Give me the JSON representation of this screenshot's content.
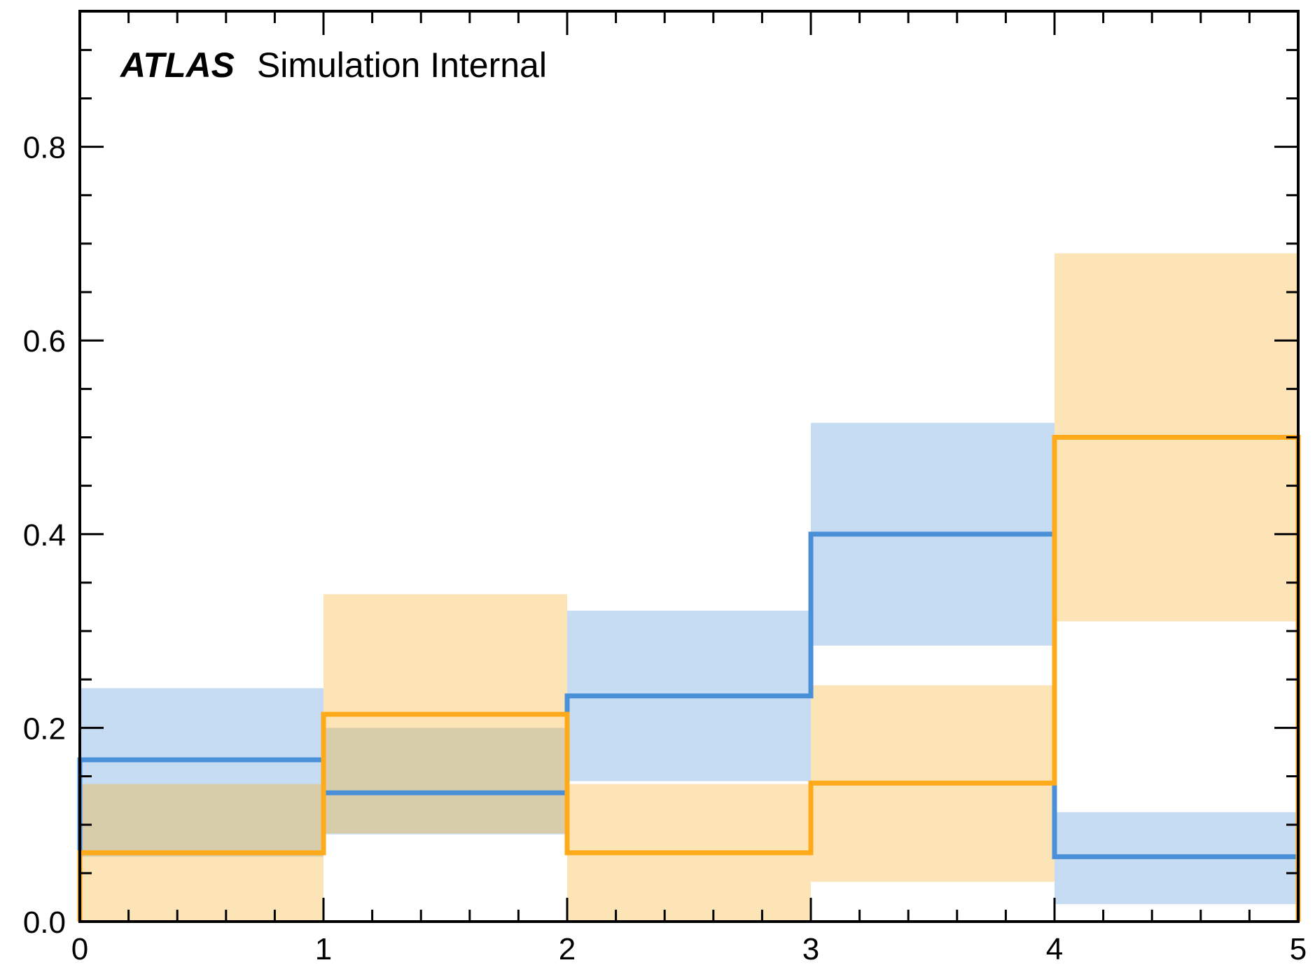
{
  "chart_data": {
    "type": "histogram",
    "title": "",
    "xlabel": "",
    "ylabel": "",
    "xlim": [
      0,
      5
    ],
    "ylim": [
      0,
      0.94
    ],
    "grid": false,
    "annotation": {
      "experiment": "ATLAS",
      "status": "Simulation Internal"
    },
    "bin_edges": [
      0,
      1,
      2,
      3,
      4,
      5
    ],
    "x_ticks": [
      "0",
      "1",
      "2",
      "3",
      "4",
      "5"
    ],
    "y_ticks": [
      "0.0",
      "0.2",
      "0.4",
      "0.6",
      "0.8"
    ],
    "y_tick_values": [
      0.0,
      0.2,
      0.4,
      0.6,
      0.8
    ],
    "series": [
      {
        "color": "#4a90d9",
        "band_color": "#c6dcf2",
        "values": [
          0.167,
          0.133,
          0.233,
          0.4,
          0.067
        ],
        "band_low": [
          0.067,
          0.09,
          0.145,
          0.285,
          0.018
        ],
        "band_high": [
          0.241,
          0.2,
          0.321,
          0.515,
          0.113
        ]
      },
      {
        "color": "#ffaa1a",
        "band_color": "#fde4b6",
        "values": [
          0.071,
          0.214,
          0.071,
          0.143,
          0.5
        ],
        "band_low": [
          0.0,
          0.091,
          0.0,
          0.041,
          0.31
        ],
        "band_high": [
          0.142,
          0.338,
          0.142,
          0.244,
          0.69
        ]
      }
    ]
  }
}
